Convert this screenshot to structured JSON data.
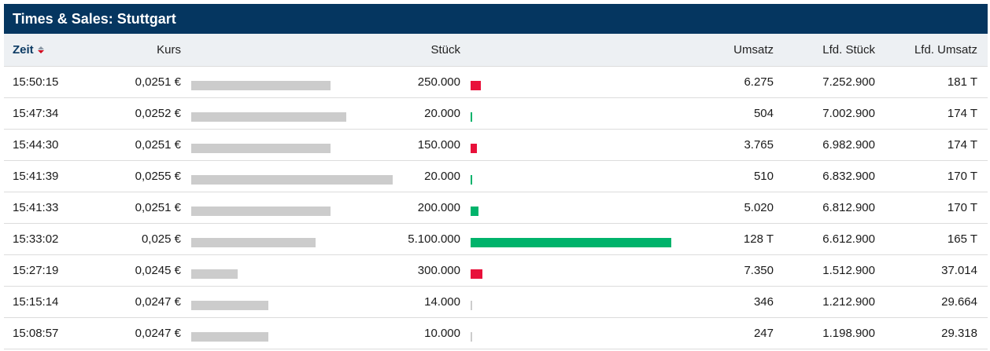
{
  "title": "Times & Sales: Stuttgart",
  "columns": {
    "zeit": "Zeit",
    "kurs": "Kurs",
    "stueck": "Stück",
    "umsatz": "Umsatz",
    "lfd_stueck": "Lfd. Stück",
    "lfd_umsatz": "Lfd. Umsatz"
  },
  "sort": {
    "column": "Zeit",
    "icon": "sort-icon"
  },
  "colors": {
    "header_bg": "#053660",
    "price_bar": "#cccccc",
    "down": "#e8103a",
    "up": "#00b36b",
    "neutral": "#cccccc"
  },
  "rows": [
    {
      "zeit": "15:50:15",
      "kurs": "0,0251 €",
      "kurs_value": 0.0251,
      "stueck": "250.000",
      "stueck_value": 250000,
      "direction": "down",
      "umsatz": "6.275",
      "lfd_stueck": "7.252.900",
      "lfd_umsatz": "181 T"
    },
    {
      "zeit": "15:47:34",
      "kurs": "0,0252 €",
      "kurs_value": 0.0252,
      "stueck": "20.000",
      "stueck_value": 20000,
      "direction": "up",
      "umsatz": "504",
      "lfd_stueck": "7.002.900",
      "lfd_umsatz": "174 T"
    },
    {
      "zeit": "15:44:30",
      "kurs": "0,0251 €",
      "kurs_value": 0.0251,
      "stueck": "150.000",
      "stueck_value": 150000,
      "direction": "down",
      "umsatz": "3.765",
      "lfd_stueck": "6.982.900",
      "lfd_umsatz": "174 T"
    },
    {
      "zeit": "15:41:39",
      "kurs": "0,0255 €",
      "kurs_value": 0.0255,
      "stueck": "20.000",
      "stueck_value": 20000,
      "direction": "up",
      "umsatz": "510",
      "lfd_stueck": "6.832.900",
      "lfd_umsatz": "170 T"
    },
    {
      "zeit": "15:41:33",
      "kurs": "0,0251 €",
      "kurs_value": 0.0251,
      "stueck": "200.000",
      "stueck_value": 200000,
      "direction": "up",
      "umsatz": "5.020",
      "lfd_stueck": "6.812.900",
      "lfd_umsatz": "170 T"
    },
    {
      "zeit": "15:33:02",
      "kurs": "0,025 €",
      "kurs_value": 0.025,
      "stueck": "5.100.000",
      "stueck_value": 5100000,
      "direction": "up",
      "umsatz": "128 T",
      "lfd_stueck": "6.612.900",
      "lfd_umsatz": "165 T"
    },
    {
      "zeit": "15:27:19",
      "kurs": "0,0245 €",
      "kurs_value": 0.0245,
      "stueck": "300.000",
      "stueck_value": 300000,
      "direction": "down",
      "umsatz": "7.350",
      "lfd_stueck": "1.512.900",
      "lfd_umsatz": "37.014"
    },
    {
      "zeit": "15:15:14",
      "kurs": "0,0247 €",
      "kurs_value": 0.0247,
      "stueck": "14.000",
      "stueck_value": 14000,
      "direction": "neutral",
      "umsatz": "346",
      "lfd_stueck": "1.212.900",
      "lfd_umsatz": "29.664"
    },
    {
      "zeit": "15:08:57",
      "kurs": "0,0247 €",
      "kurs_value": 0.0247,
      "stueck": "10.000",
      "stueck_value": 10000,
      "direction": "neutral",
      "umsatz": "247",
      "lfd_stueck": "1.198.900",
      "lfd_umsatz": "29.318"
    }
  ]
}
